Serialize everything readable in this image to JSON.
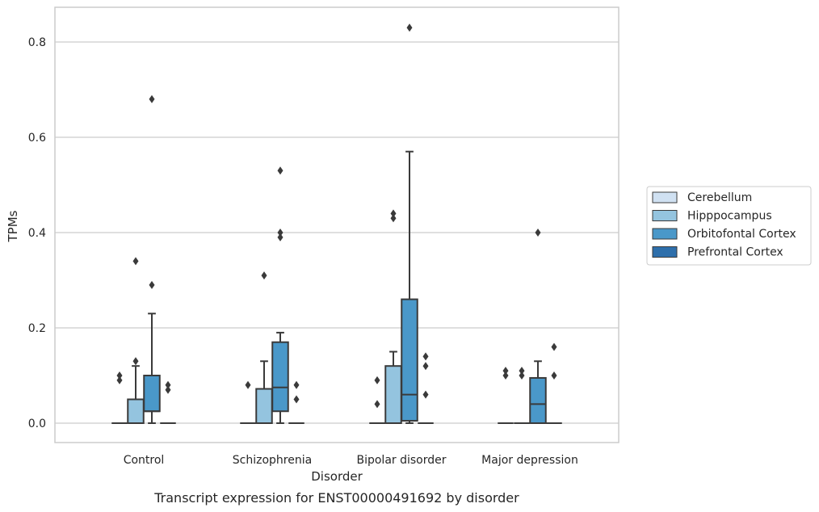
{
  "caption": "Transcript expression for ENST00000491692 by disorder",
  "chart_data": {
    "type": "box",
    "xlabel": "Disorder",
    "ylabel": "TPMs",
    "ylim": [
      -0.04,
      0.874
    ],
    "yticks": [
      0.0,
      0.2,
      0.4,
      0.6,
      0.8
    ],
    "ytick_labels": [
      "0.0",
      "0.2",
      "0.4",
      "0.6",
      "0.8"
    ],
    "grid": "horizontal",
    "legend_position": "right",
    "categories": [
      "Control",
      "Schizophrenia",
      "Bipolar disorder",
      "Major depression"
    ],
    "series": [
      {
        "name": "Cerebellum",
        "color": "#d0e1f2",
        "boxes": [
          {
            "q1": 0,
            "median": 0,
            "q3": 0,
            "whislo": 0,
            "whishi": 0,
            "fliers": [
              0.09,
              0.1
            ]
          },
          {
            "q1": 0,
            "median": 0,
            "q3": 0,
            "whislo": 0,
            "whishi": 0,
            "fliers": [
              0.08
            ]
          },
          {
            "q1": 0,
            "median": 0,
            "q3": 0,
            "whislo": 0,
            "whishi": 0,
            "fliers": [
              0.04,
              0.09
            ]
          },
          {
            "q1": 0,
            "median": 0,
            "q3": 0,
            "whislo": 0,
            "whishi": 0,
            "fliers": [
              0.1,
              0.11
            ]
          }
        ]
      },
      {
        "name": "Hipppocampus",
        "color": "#94c4df",
        "boxes": [
          {
            "q1": 0,
            "median": 0,
            "q3": 0.05,
            "whislo": 0,
            "whishi": 0.12,
            "fliers": [
              0.13,
              0.34
            ]
          },
          {
            "q1": 0,
            "median": 0,
            "q3": 0.072,
            "whislo": 0,
            "whishi": 0.13,
            "fliers": [
              0.31
            ]
          },
          {
            "q1": 0,
            "median": 0,
            "q3": 0.12,
            "whislo": 0,
            "whishi": 0.15,
            "fliers": [
              0.43,
              0.44
            ]
          },
          {
            "q1": 0,
            "median": 0,
            "q3": 0,
            "whislo": 0,
            "whishi": 0,
            "fliers": [
              0.1,
              0.11
            ]
          }
        ]
      },
      {
        "name": "Orbitofontal Cortex",
        "color": "#4a98c9",
        "boxes": [
          {
            "q1": 0.025,
            "median": 0.025,
            "q3": 0.1,
            "whislo": 0,
            "whishi": 0.23,
            "fliers": [
              0.29,
              0.68
            ]
          },
          {
            "q1": 0.025,
            "median": 0.075,
            "q3": 0.17,
            "whislo": 0,
            "whishi": 0.19,
            "fliers": [
              0.39,
              0.4,
              0.53
            ]
          },
          {
            "q1": 0.005,
            "median": 0.06,
            "q3": 0.26,
            "whislo": 0,
            "whishi": 0.57,
            "fliers": [
              0.83
            ]
          },
          {
            "q1": 0,
            "median": 0.04,
            "q3": 0.095,
            "whislo": 0,
            "whishi": 0.13,
            "fliers": [
              0.4
            ]
          }
        ]
      },
      {
        "name": "Prefrontal Cortex",
        "color": "#2e6fab",
        "boxes": [
          {
            "q1": 0,
            "median": 0,
            "q3": 0,
            "whislo": 0,
            "whishi": 0,
            "fliers": [
              0.07,
              0.08
            ]
          },
          {
            "q1": 0,
            "median": 0,
            "q3": 0,
            "whislo": 0,
            "whishi": 0,
            "fliers": [
              0.05,
              0.08
            ]
          },
          {
            "q1": 0,
            "median": 0,
            "q3": 0,
            "whislo": 0,
            "whishi": 0,
            "fliers": [
              0.06,
              0.12,
              0.14
            ]
          },
          {
            "q1": 0,
            "median": 0,
            "q3": 0,
            "whislo": 0,
            "whishi": 0,
            "fliers": [
              0.1,
              0.16
            ]
          }
        ]
      }
    ]
  }
}
